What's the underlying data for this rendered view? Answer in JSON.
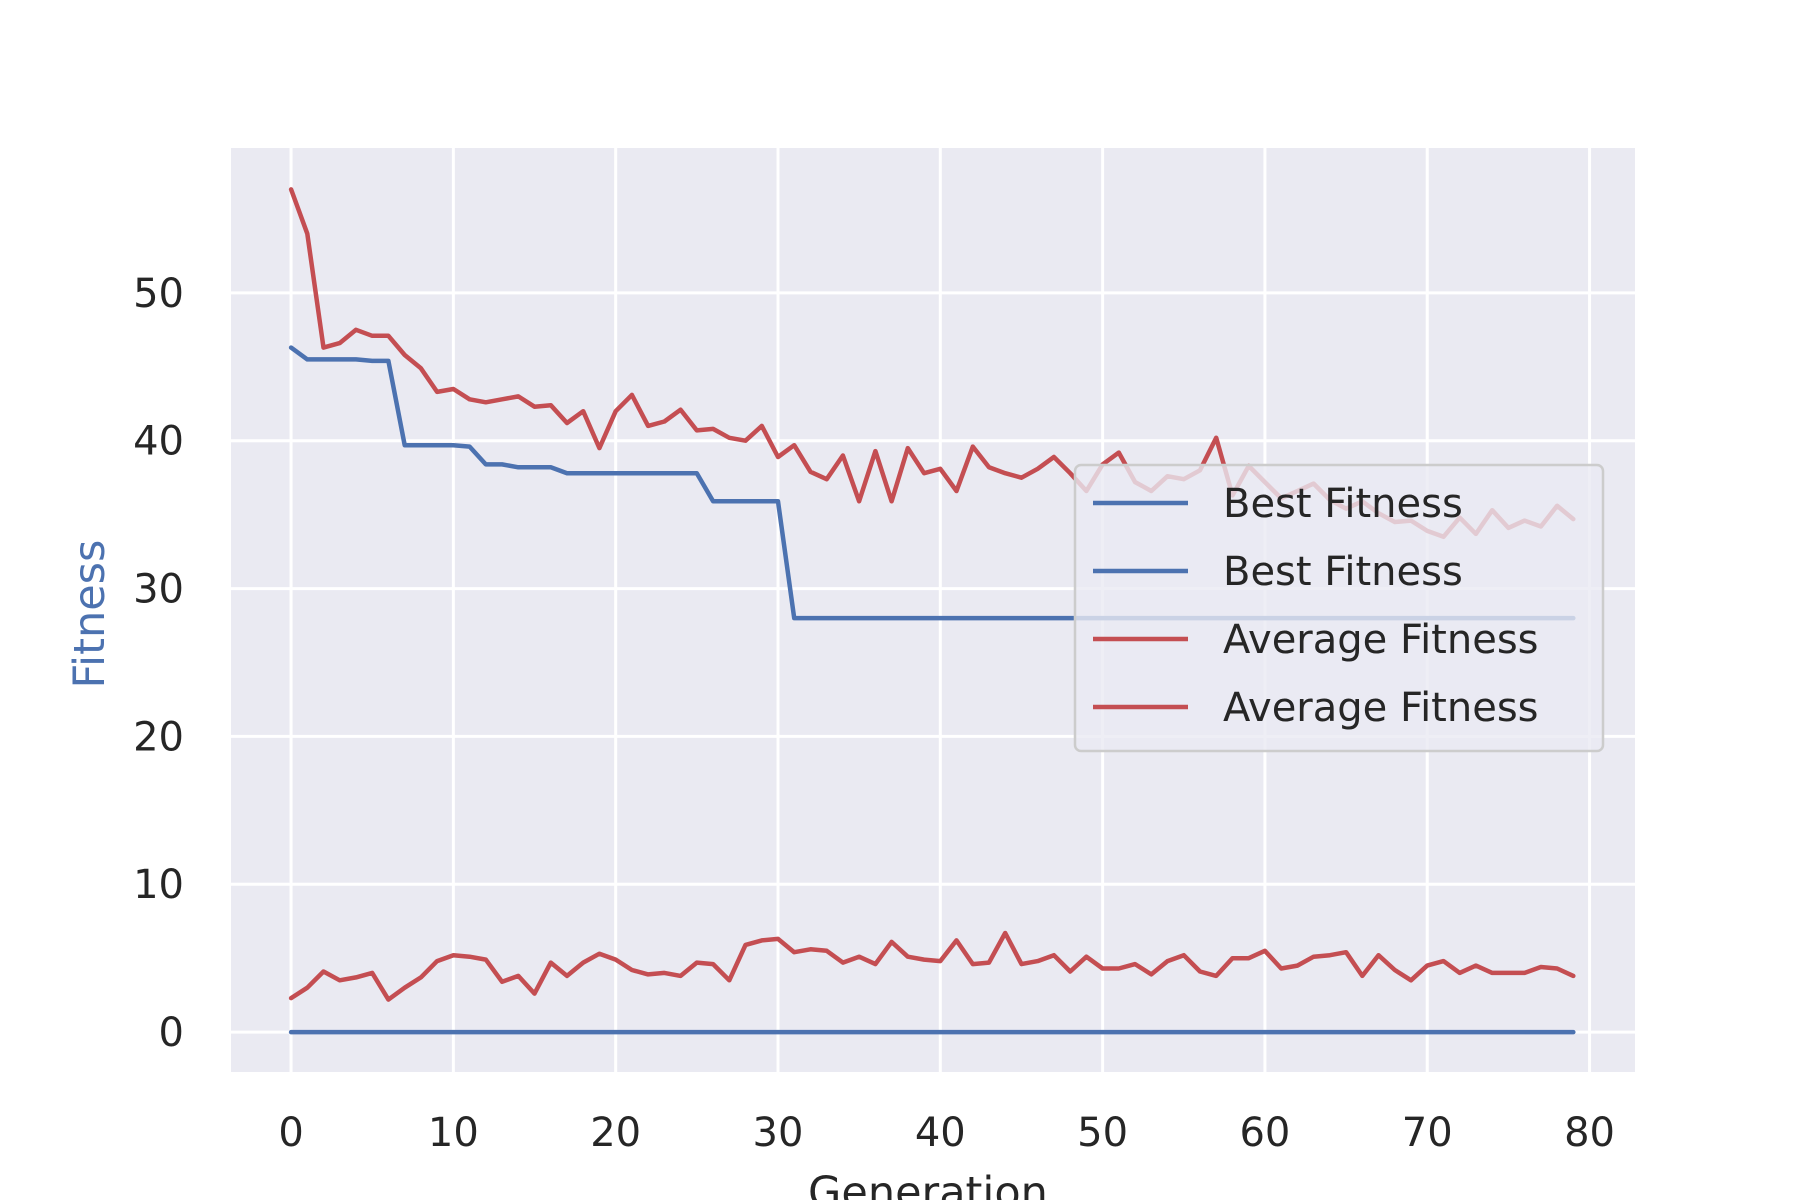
{
  "chart_data": {
    "type": "line",
    "xlabel": "Generation",
    "ylabel": "Fitness",
    "xlim": [
      -3.7,
      82.8
    ],
    "ylim": [
      -2.7,
      59.8
    ],
    "xticks": [
      0,
      10,
      20,
      30,
      40,
      50,
      60,
      70,
      80
    ],
    "yticks": [
      0,
      10,
      20,
      30,
      40,
      50
    ],
    "grid": true,
    "legend_position": "right",
    "legend": [
      {
        "label": "Best Fitness",
        "color": "#4c72b0"
      },
      {
        "label": "Best Fitness",
        "color": "#4c72b0"
      },
      {
        "label": "Average Fitness",
        "color": "#c44e52"
      },
      {
        "label": "Average Fitness",
        "color": "#c44e52"
      }
    ],
    "x": [
      0,
      1,
      2,
      3,
      4,
      5,
      6,
      7,
      8,
      9,
      10,
      11,
      12,
      13,
      14,
      15,
      16,
      17,
      18,
      19,
      20,
      21,
      22,
      23,
      24,
      25,
      26,
      27,
      28,
      29,
      30,
      31,
      32,
      33,
      34,
      35,
      36,
      37,
      38,
      39,
      40,
      41,
      42,
      43,
      44,
      45,
      46,
      47,
      48,
      49,
      50,
      51,
      52,
      53,
      54,
      55,
      56,
      57,
      58,
      59,
      60,
      61,
      62,
      63,
      64,
      65,
      66,
      67,
      68,
      69,
      70,
      71,
      72,
      73,
      74,
      75,
      76,
      77,
      78,
      79
    ],
    "series": [
      {
        "name": "Best Fitness",
        "color": "#4c72b0",
        "values": [
          46.3,
          45.5,
          45.5,
          45.5,
          45.5,
          45.4,
          45.4,
          39.7,
          39.7,
          39.7,
          39.7,
          39.6,
          38.4,
          38.4,
          38.2,
          38.2,
          38.2,
          37.8,
          37.8,
          37.8,
          37.8,
          37.8,
          37.8,
          37.8,
          37.8,
          37.8,
          35.9,
          35.9,
          35.9,
          35.9,
          35.9,
          28,
          28,
          28,
          28,
          28,
          28,
          28,
          28,
          28,
          28,
          28,
          28,
          28,
          28,
          28,
          28,
          28,
          28,
          28,
          28,
          28,
          28,
          28,
          28,
          28,
          28,
          28,
          28,
          28,
          28,
          28,
          28,
          28,
          28,
          28,
          28,
          28,
          28,
          28,
          28,
          28,
          28,
          28,
          28,
          28,
          28,
          28,
          28,
          28
        ]
      },
      {
        "name": "Best Fitness",
        "color": "#4c72b0",
        "values": [
          0,
          0,
          0,
          0,
          0,
          0,
          0,
          0,
          0,
          0,
          0,
          0,
          0,
          0,
          0,
          0,
          0,
          0,
          0,
          0,
          0,
          0,
          0,
          0,
          0,
          0,
          0,
          0,
          0,
          0,
          0,
          0,
          0,
          0,
          0,
          0,
          0,
          0,
          0,
          0,
          0,
          0,
          0,
          0,
          0,
          0,
          0,
          0,
          0,
          0,
          0,
          0,
          0,
          0,
          0,
          0,
          0,
          0,
          0,
          0,
          0,
          0,
          0,
          0,
          0,
          0,
          0,
          0,
          0,
          0,
          0,
          0,
          0,
          0,
          0,
          0,
          0,
          0,
          0,
          0
        ]
      },
      {
        "name": "Average Fitness",
        "color": "#c44e52",
        "values": [
          57,
          54,
          46.3,
          46.6,
          47.5,
          47.1,
          47.1,
          45.8,
          44.9,
          43.3,
          43.5,
          42.8,
          42.6,
          42.8,
          43,
          42.3,
          42.4,
          41.2,
          42,
          39.5,
          42,
          43.1,
          41,
          41.3,
          42.1,
          40.7,
          40.8,
          40.2,
          40,
          41,
          38.9,
          39.7,
          37.9,
          37.4,
          39,
          35.9,
          39.3,
          35.9,
          39.5,
          37.8,
          38.1,
          36.6,
          39.6,
          38.2,
          37.8,
          37.5,
          38.1,
          38.9,
          37.8,
          36.6,
          38.4,
          39.2,
          37.2,
          36.6,
          37.6,
          37.4,
          38,
          40.2,
          36.3,
          38.3,
          37.2,
          36.1,
          36.6,
          37.1,
          36,
          35.4,
          35.9,
          35.1,
          34.5,
          34.6,
          33.9,
          33.5,
          34.8,
          33.7,
          35.3,
          34.1,
          34.6,
          34.2,
          35.6,
          34.7
        ]
      },
      {
        "name": "Average Fitness",
        "color": "#c44e52",
        "values": [
          2.3,
          3,
          4.1,
          3.5,
          3.7,
          4,
          2.2,
          3,
          3.7,
          4.8,
          5.2,
          5.1,
          4.9,
          3.4,
          3.8,
          2.6,
          4.7,
          3.8,
          4.7,
          5.3,
          4.9,
          4.2,
          3.9,
          4,
          3.8,
          4.7,
          4.6,
          3.5,
          5.9,
          6.2,
          6.3,
          5.4,
          5.6,
          5.5,
          4.7,
          5.1,
          4.6,
          6.1,
          5.1,
          4.9,
          4.8,
          6.2,
          4.6,
          4.7,
          6.7,
          4.6,
          4.8,
          5.2,
          4.1,
          5.1,
          4.3,
          4.3,
          4.6,
          3.9,
          4.8,
          5.2,
          4.1,
          3.8,
          5,
          5,
          5.5,
          4.3,
          4.5,
          5.1,
          5.2,
          5.4,
          3.8,
          5.2,
          4.2,
          3.5,
          4.5,
          4.8,
          4,
          4.5,
          4,
          4,
          4,
          4.4,
          4.3,
          3.8
        ]
      }
    ]
  }
}
